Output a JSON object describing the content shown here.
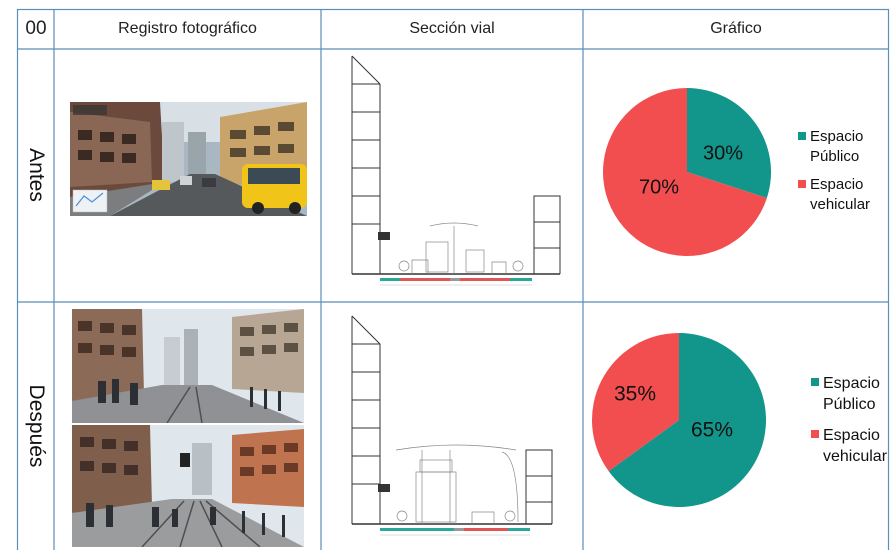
{
  "header": {
    "index": "00",
    "col_photo": "Registro fotográfico",
    "col_section": "Sección vial",
    "col_chart": "Gráfico"
  },
  "rows": [
    {
      "label": "Antes",
      "chart_data": {
        "type": "pie",
        "categories": [
          "Espacio Público",
          "Espacio vehicular"
        ],
        "values": [
          30,
          70
        ],
        "value_labels": [
          "30%",
          "70%"
        ],
        "colors": [
          "#12968c",
          "#f24e50"
        ],
        "legend": [
          {
            "line1": "Espacio",
            "line2": "Público"
          },
          {
            "line1": "Espacio",
            "line2": "vehicular"
          }
        ],
        "legend_position": "right"
      }
    },
    {
      "label": "Después",
      "chart_data": {
        "type": "pie",
        "categories": [
          "Espacio Público",
          "Espacio vehicular"
        ],
        "values": [
          65,
          35
        ],
        "value_labels": [
          "65%",
          "35%"
        ],
        "colors": [
          "#12968c",
          "#f24e50"
        ],
        "legend": [
          {
            "line1": "Espacio",
            "line2": "Público"
          },
          {
            "line1": "Espacio",
            "line2": "vehicular"
          }
        ],
        "legend_position": "right"
      }
    }
  ]
}
